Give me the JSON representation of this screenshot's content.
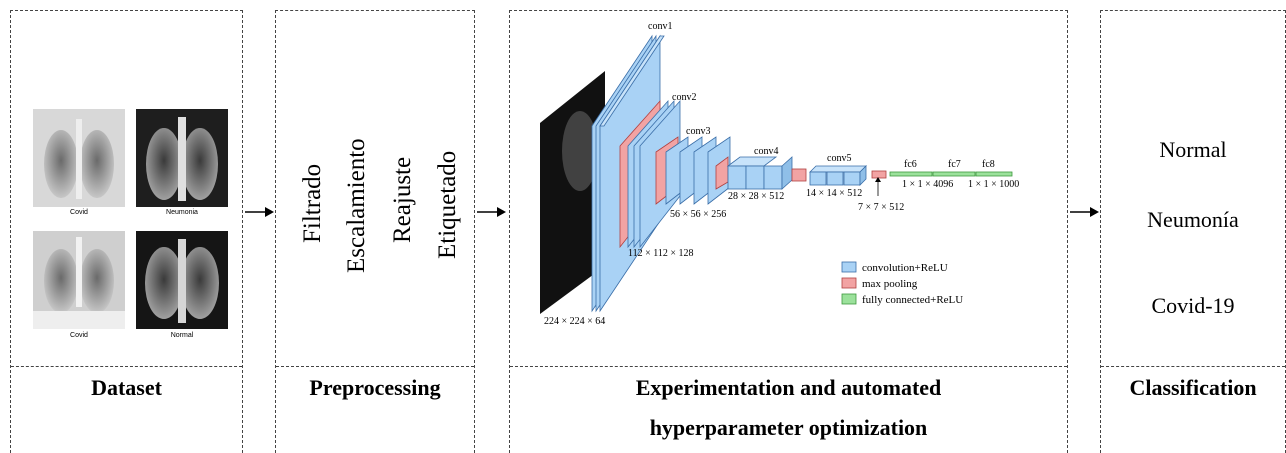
{
  "panels": {
    "dataset": {
      "label": "Dataset",
      "images": [
        {
          "caption": "Covid",
          "icon": "chest-xray-covid-1"
        },
        {
          "caption": "Neumonia",
          "icon": "chest-xray-pneumonia"
        },
        {
          "caption": "Covid",
          "icon": "chest-xray-covid-2"
        },
        {
          "caption": "Normal",
          "icon": "chest-xray-normal"
        }
      ]
    },
    "preprocessing": {
      "label": "Preprocessing",
      "steps": [
        "Filtrado",
        "Escalamiento",
        "Reajuste",
        "Etiquetado"
      ]
    },
    "experimentation": {
      "label_line1": "Experimentation and automated",
      "label_line2": "hyperparameter optimization",
      "network": {
        "layers": {
          "conv1": "conv1",
          "conv2": "conv2",
          "conv3": "conv3",
          "conv4": "conv4",
          "conv5": "conv5",
          "fc6": "fc6",
          "fc7": "fc7",
          "fc8": "fc8"
        },
        "dims": {
          "d224": "224 × 224 × 64",
          "d112": "112 × 112 × 128",
          "d56": "56 × 56 × 256",
          "d28": "28 × 28 × 512",
          "d14": "14 × 14 × 512",
          "d7": "7 × 7 × 512",
          "fc6": "1 × 1 × 4096",
          "fc8": "1 × 1 × 1000"
        },
        "legend": [
          {
            "label": "convolution+ReLU",
            "color": "#a9d2f5"
          },
          {
            "label": "max pooling",
            "color": "#f2a3a3"
          },
          {
            "label": "fully connected+ReLU",
            "color": "#9be19b"
          }
        ]
      }
    },
    "classification": {
      "label": "Classification",
      "classes": [
        "Normal",
        "Neumonía",
        "Covid-19"
      ]
    }
  }
}
